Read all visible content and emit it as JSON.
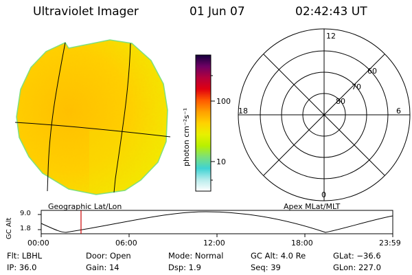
{
  "header": {
    "instrument": "Ultraviolet Imager",
    "date": "01 Jun 07",
    "time": "02:42:43 UT"
  },
  "image_panel": {
    "caption": "Geographic Lat/Lon"
  },
  "colorbar": {
    "unit_label": "photon cm⁻²s⁻¹",
    "tick_labels": [
      "100",
      "10"
    ],
    "gradient": [
      "#ffffff",
      "#b8ecec",
      "#3fd3d3",
      "#7be07b",
      "#b8f000",
      "#e8f000",
      "#ffd200",
      "#ffa000",
      "#ff5a00",
      "#e00010",
      "#b4003c",
      "#6e0064",
      "#14003c"
    ]
  },
  "polar_panel": {
    "caption": "Apex MLat/MLT",
    "mlt_labels": {
      "top": "12",
      "bottom": "0",
      "left": "18",
      "right": "6"
    },
    "lat_labels": [
      "60",
      "70",
      "80"
    ]
  },
  "altitude_plot": {
    "axis_title": "GC Alt",
    "y_ticks": [
      "9.0",
      "1.8"
    ],
    "x_ticks": [
      "00:00",
      "06:00",
      "12:00",
      "18:00",
      "23:59"
    ],
    "marker_color": "#cc0000"
  },
  "info": {
    "filter": "Flt: LBHL",
    "ip": "IP: 36.0",
    "door": "Door: Open",
    "gain": "Gain: 14",
    "mode": "Mode: Normal",
    "dsp": "Dsp:     1.9",
    "gc_alt": "GC Alt: 4.0 Re",
    "seq": "Seq: 39",
    "glat": "GLat: −36.6",
    "glon": "GLon: 227.0"
  }
}
